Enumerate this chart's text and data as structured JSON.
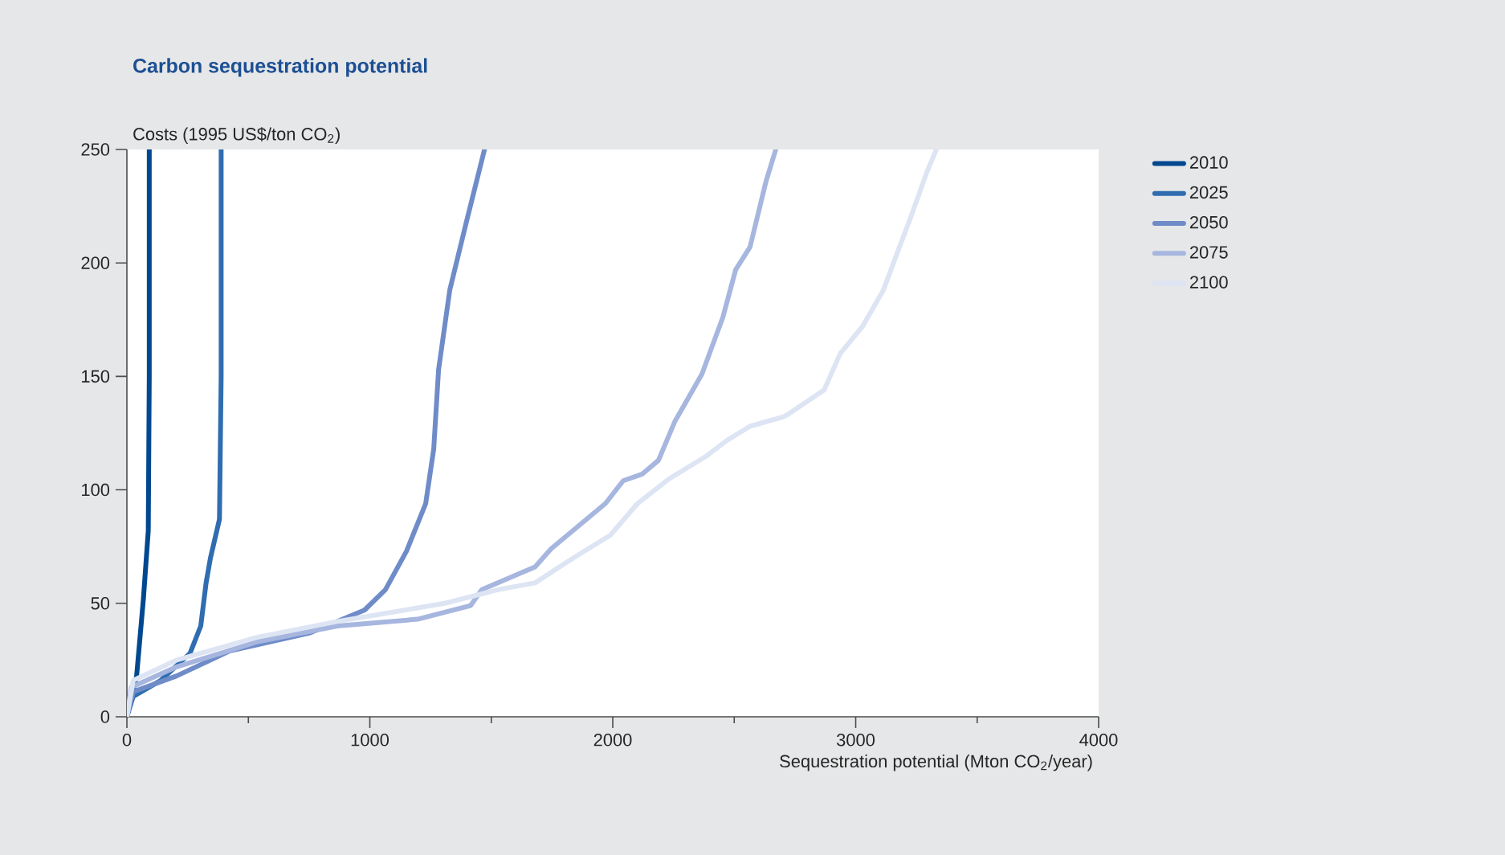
{
  "chart_data": {
    "type": "line",
    "title": "Carbon sequestration potential",
    "xlabel": "Sequestration potential (Mton CO$_{2}$/year)",
    "ylabel": "Costs (1995 US$/ton CO$_{2}$)",
    "xlim": [
      0,
      4000
    ],
    "ylim": [
      0,
      250
    ],
    "xticks": [
      0,
      {
        "value": 500,
        "label": null
      },
      1000,
      {
        "value": 1500,
        "label": null
      },
      2000,
      {
        "value": 2500,
        "label": null
      },
      3000,
      {
        "value": 3500,
        "label": null
      },
      4000
    ],
    "yticks": [
      0,
      50,
      100,
      150,
      200,
      250
    ],
    "legend": "right",
    "series": [
      {
        "name": "2010",
        "color": "#00488f",
        "x": [
          0,
          40,
          68,
          88,
          92,
          92
        ],
        "values": [
          0,
          18,
          52,
          82,
          150,
          250
        ]
      },
      {
        "name": "2025",
        "color": "#2f6db0",
        "x": [
          0,
          26,
          139,
          260,
          304,
          326,
          344,
          381,
          388,
          388
        ],
        "values": [
          0,
          9,
          16,
          28,
          40,
          59,
          70,
          87,
          150,
          250
        ]
      },
      {
        "name": "2050",
        "color": "#6f8cc8",
        "x": [
          0,
          26,
          205,
          423,
          754,
          978,
          1064,
          1151,
          1230,
          1263,
          1283,
          1329,
          1395,
          1472
        ],
        "values": [
          0,
          11,
          18,
          29,
          37,
          47,
          56,
          73,
          94,
          118,
          153,
          188,
          217,
          250
        ]
      },
      {
        "name": "2075",
        "color": "#a6b6df",
        "x": [
          0,
          18,
          205,
          535,
          866,
          1197,
          1415,
          1461,
          1680,
          1746,
          1858,
          1970,
          2043,
          2122,
          2188,
          2255,
          2367,
          2453,
          2506,
          2565,
          2631,
          2671
        ],
        "values": [
          0,
          13,
          22,
          33,
          40,
          43,
          49,
          56,
          66,
          74,
          84,
          94,
          104,
          107,
          113,
          130,
          151,
          176,
          197,
          207,
          236,
          250
        ]
      },
      {
        "name": "2100",
        "color": "#dde4f3",
        "x": [
          0,
          26,
          205,
          535,
          866,
          1309,
          1527,
          1680,
          1838,
          1990,
          2102,
          2234,
          2387,
          2473,
          2565,
          2697,
          2717,
          2870,
          2936,
          3028,
          3114,
          3180,
          3226,
          3293,
          3332
        ],
        "values": [
          0,
          16,
          25,
          35,
          42,
          50,
          56,
          59,
          70,
          80,
          94,
          105,
          115,
          122,
          128,
          132,
          133,
          144,
          160,
          172,
          188,
          207,
          220,
          240,
          250
        ]
      }
    ]
  }
}
